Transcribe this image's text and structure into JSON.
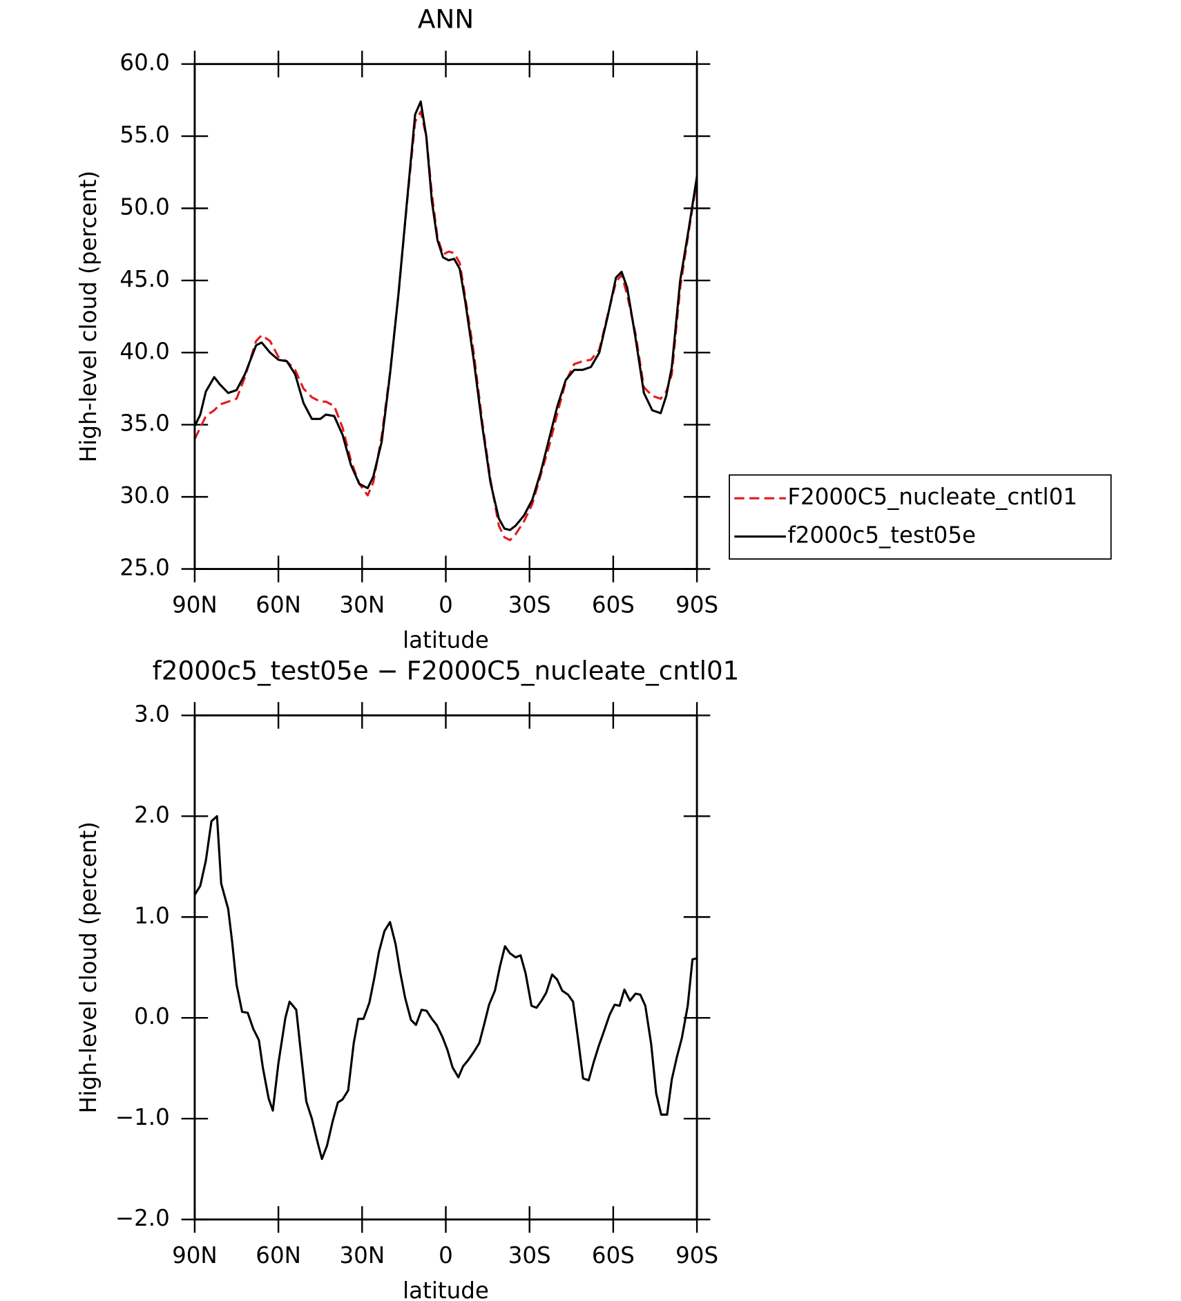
{
  "chart_data": [
    {
      "type": "line",
      "title": "ANN",
      "x_label": "latitude",
      "y_label": "High-level cloud (percent)",
      "xlim": [
        90,
        -90
      ],
      "xticks": [
        {
          "value": 90,
          "label": "90N"
        },
        {
          "value": 60,
          "label": "60N"
        },
        {
          "value": 30,
          "label": "30N"
        },
        0,
        {
          "value": -30,
          "label": "30S"
        },
        {
          "value": -60,
          "label": "60S"
        },
        {
          "value": -90,
          "label": "90S"
        }
      ],
      "ylim": [
        25,
        60
      ],
      "yticks": [
        {
          "value": 25,
          "label": "25.0"
        },
        {
          "value": 30,
          "label": "30.0"
        },
        {
          "value": 35,
          "label": "35.0"
        },
        {
          "value": 40,
          "label": "40.0"
        },
        {
          "value": 45,
          "label": "45.0"
        },
        {
          "value": 50,
          "label": "50.0"
        },
        {
          "value": 55,
          "label": "55.0"
        },
        {
          "value": 60,
          "label": "60.0"
        }
      ],
      "x": [
        90,
        88,
        86,
        83,
        81,
        78,
        75,
        72,
        68,
        66,
        63,
        60,
        57,
        54,
        51,
        48,
        45,
        43,
        40,
        37,
        34,
        31,
        28,
        26,
        23,
        20,
        17,
        14,
        11,
        9,
        7,
        5,
        3,
        1,
        -1,
        -3,
        -5,
        -7,
        -10,
        -13,
        -16,
        -19,
        -21,
        -23,
        -25,
        -28,
        -31,
        -34,
        -37,
        -40,
        -43,
        -46,
        -49,
        -52,
        -55,
        -58,
        -61,
        -63,
        -65,
        -68,
        -71,
        -74,
        -77,
        -79,
        -81,
        -84,
        -87,
        -90
      ],
      "series": [
        {
          "name": "F2000C5_nucleate_cntl01",
          "color": "#e41a1c",
          "linestyle": "dashed",
          "values": [
            34.0,
            34.8,
            35.6,
            36.0,
            36.4,
            36.6,
            36.8,
            38.3,
            40.8,
            41.2,
            40.8,
            39.7,
            39.4,
            38.8,
            37.5,
            36.9,
            36.6,
            36.6,
            36.3,
            34.8,
            32.5,
            30.9,
            30.1,
            31.0,
            34.2,
            38.6,
            44.0,
            50.2,
            56.0,
            56.7,
            55.0,
            51.0,
            48.0,
            46.8,
            47.0,
            46.9,
            46.2,
            43.8,
            40.0,
            35.3,
            31.2,
            28.0,
            27.2,
            27.0,
            27.4,
            28.3,
            29.5,
            31.5,
            33.5,
            35.8,
            38.0,
            39.2,
            39.4,
            39.5,
            40.2,
            42.6,
            44.9,
            45.4,
            44.0,
            41.3,
            37.6,
            37.0,
            36.8,
            37.3,
            38.5,
            44.5,
            48.3,
            52.0
          ]
        },
        {
          "name": "f2000c5_test05e",
          "color": "#000000",
          "linestyle": "solid",
          "values": [
            34.9,
            35.7,
            37.3,
            38.3,
            37.8,
            37.2,
            37.4,
            38.5,
            40.5,
            40.7,
            40.0,
            39.5,
            39.4,
            38.5,
            36.5,
            35.4,
            35.4,
            35.7,
            35.6,
            34.3,
            32.2,
            30.9,
            30.6,
            31.4,
            33.8,
            38.5,
            44.0,
            50.3,
            56.5,
            57.4,
            55.0,
            50.5,
            47.8,
            46.6,
            46.4,
            46.5,
            45.8,
            43.5,
            39.5,
            35.0,
            31.0,
            28.5,
            27.8,
            27.7,
            28.0,
            28.7,
            29.8,
            31.7,
            34.0,
            36.3,
            38.1,
            38.8,
            38.8,
            39.0,
            40.0,
            42.5,
            45.2,
            45.6,
            44.5,
            41.0,
            37.2,
            36.0,
            35.8,
            37.0,
            39.0,
            45.0,
            48.5,
            52.2
          ]
        }
      ]
    },
    {
      "type": "line",
      "title": "f2000c5_test05e − F2000C5_nucleate_cntl01",
      "x_label": "latitude",
      "y_label": "High-level cloud (percent)",
      "xlim": [
        90,
        -90
      ],
      "xticks": [
        {
          "value": 90,
          "label": "90N"
        },
        {
          "value": 60,
          "label": "60N"
        },
        {
          "value": 30,
          "label": "30N"
        },
        0,
        {
          "value": -30,
          "label": "30S"
        },
        {
          "value": -60,
          "label": "60S"
        },
        {
          "value": -90,
          "label": "90S"
        }
      ],
      "ylim": [
        -2,
        3
      ],
      "yticks": [
        {
          "value": -2,
          "label": "−2.0"
        },
        {
          "value": -1,
          "label": "−1.0"
        },
        {
          "value": 0,
          "label": "0.0"
        },
        {
          "value": 1,
          "label": "1.0"
        },
        {
          "value": 2,
          "label": "2.0"
        },
        {
          "value": 3,
          "label": "3.0"
        }
      ],
      "color": "#000000",
      "x": [
        90,
        88,
        86,
        84,
        82,
        80.5,
        78,
        76.6,
        75,
        73,
        71,
        69,
        67,
        65.6,
        63.5,
        62,
        60,
        57.5,
        56,
        53.6,
        52,
        50,
        48,
        46,
        44.4,
        42.6,
        40.5,
        38.7,
        37,
        35,
        33,
        31.4,
        29.5,
        27.4,
        25.6,
        24,
        22,
        20,
        18,
        16.4,
        14.6,
        12.5,
        10.7,
        8.7,
        6.9,
        5,
        3.3,
        1.2,
        -0.6,
        -2.4,
        -4.5,
        -6.2,
        -8,
        -10,
        -12,
        -13.7,
        -15.5,
        -17.6,
        -19.4,
        -21.2,
        -23,
        -25,
        -26.8,
        -28.6,
        -30.7,
        -32.5,
        -34.3,
        -36,
        -38.1,
        -39.9,
        -41.7,
        -43.8,
        -45.6,
        -47.4,
        -49.2,
        -51.2,
        -53,
        -54.8,
        -56.6,
        -58.7,
        -60.5,
        -62.3,
        -64,
        -66,
        -68,
        -69.7,
        -71.5,
        -73.6,
        -75.4,
        -77.2,
        -79.3,
        -81,
        -82.8,
        -84.6,
        -86.7,
        -88.4,
        -90
      ],
      "values": [
        1.22,
        1.31,
        1.56,
        1.95,
        2.0,
        1.33,
        1.08,
        0.76,
        0.33,
        0.06,
        0.05,
        -0.11,
        -0.22,
        -0.49,
        -0.8,
        -0.92,
        -0.45,
        0.0,
        0.16,
        0.08,
        -0.33,
        -0.83,
        -1.0,
        -1.23,
        -1.4,
        -1.27,
        -1.02,
        -0.84,
        -0.81,
        -0.72,
        -0.25,
        -0.01,
        -0.01,
        0.15,
        0.4,
        0.65,
        0.86,
        0.95,
        0.73,
        0.46,
        0.2,
        -0.02,
        -0.07,
        0.08,
        0.07,
        -0.01,
        -0.07,
        -0.19,
        -0.32,
        -0.49,
        -0.59,
        -0.48,
        -0.42,
        -0.34,
        -0.25,
        -0.07,
        0.13,
        0.27,
        0.51,
        0.71,
        0.64,
        0.6,
        0.62,
        0.44,
        0.12,
        0.1,
        0.17,
        0.25,
        0.43,
        0.38,
        0.27,
        0.23,
        0.16,
        -0.21,
        -0.6,
        -0.62,
        -0.44,
        -0.28,
        -0.14,
        0.03,
        0.13,
        0.12,
        0.28,
        0.17,
        0.24,
        0.23,
        0.12,
        -0.26,
        -0.75,
        -0.96,
        -0.96,
        -0.61,
        -0.39,
        -0.2,
        0.12,
        0.58,
        0.59
      ]
    }
  ]
}
